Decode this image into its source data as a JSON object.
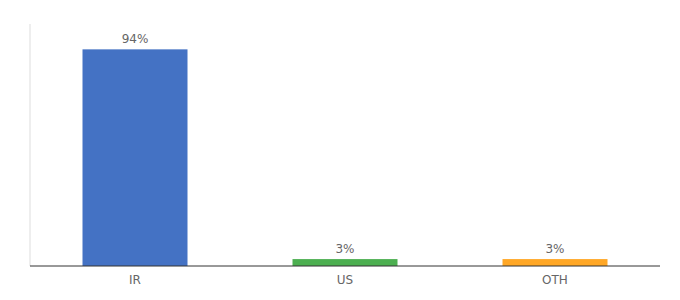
{
  "chart_data": {
    "type": "bar",
    "categories": [
      "IR",
      "US",
      "OTH"
    ],
    "values": [
      94,
      3,
      3
    ],
    "value_labels": [
      "94%",
      "3%",
      "3%"
    ],
    "colors": [
      "#4472c4",
      "#4caf50",
      "#ffa726"
    ],
    "ylim": [
      0,
      105
    ],
    "data_labels": true,
    "tick_labels": "x",
    "grid": false
  }
}
